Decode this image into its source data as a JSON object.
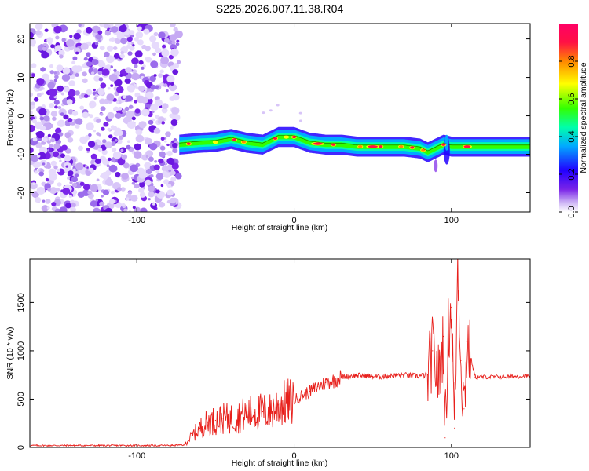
{
  "title": "S225.2026.007.11.38.R04",
  "chart_data": [
    {
      "type": "heatmap",
      "xlabel": "Height of straight line (km)",
      "ylabel": "Frequency (Hz)",
      "xlim": [
        -168,
        150
      ],
      "ylim": [
        -25,
        24
      ],
      "xticks": [
        -100,
        0,
        100
      ],
      "yticks": [
        -20,
        -10,
        0,
        10,
        20
      ],
      "colorbar": {
        "label": "Normalized spectral amplitude",
        "range": [
          0.0,
          1.0
        ],
        "ticks": [
          "0.0",
          "0.2",
          "0.4",
          "0.6",
          "0.8"
        ],
        "colors": [
          "#ffffff",
          "#cdb5f5",
          "#7a24e8",
          "#2200ff",
          "#00aaff",
          "#00ffaa",
          "#33ff00",
          "#ffff00",
          "#ff8800",
          "#ff1144",
          "#ff0066"
        ]
      },
      "noise_region_x": [
        -168,
        -73
      ],
      "ridge": {
        "x": [
          -73,
          -60,
          -50,
          -40,
          -30,
          -20,
          -10,
          0,
          10,
          20,
          30,
          40,
          50,
          60,
          70,
          80,
          85,
          90,
          95,
          100,
          105,
          110,
          120,
          130,
          140,
          150
        ],
        "y": [
          -7.5,
          -7.0,
          -6.8,
          -6.0,
          -7.0,
          -7.5,
          -5.5,
          -5.5,
          -7.0,
          -7.5,
          -7.5,
          -8.0,
          -8.0,
          -8.0,
          -8.0,
          -8.5,
          -9.5,
          -8.5,
          -7.5,
          -8.0,
          -8.0,
          -8.0,
          -8.0,
          -8.0,
          -8.0,
          -8.0
        ]
      }
    },
    {
      "type": "line",
      "xlabel": "Height of straight line (km)",
      "ylabel": "SNR (10 * v/v)",
      "xlim": [
        -168,
        150
      ],
      "ylim": [
        0,
        1950
      ],
      "xticks": [
        -100,
        0,
        100
      ],
      "yticks": [
        0,
        500,
        1000,
        1500
      ],
      "color": "#e8201c",
      "x": [
        -168,
        -140,
        -110,
        -80,
        -70,
        -65,
        -60,
        -55,
        -50,
        -45,
        -40,
        -35,
        -30,
        -25,
        -20,
        -15,
        -10,
        -5,
        0,
        5,
        10,
        15,
        20,
        25,
        30,
        35,
        40,
        45,
        50,
        55,
        60,
        65,
        70,
        75,
        80,
        85,
        88,
        92,
        95,
        96,
        98,
        100,
        102,
        104,
        106,
        108,
        110,
        115,
        120,
        130,
        140,
        150
      ],
      "y": [
        20,
        20,
        20,
        20,
        25,
        120,
        200,
        260,
        280,
        300,
        300,
        320,
        350,
        360,
        370,
        370,
        440,
        460,
        490,
        540,
        580,
        630,
        670,
        690,
        730,
        740,
        745,
        745,
        735,
        730,
        740,
        745,
        750,
        740,
        740,
        750,
        1000,
        700,
        1150,
        100,
        1200,
        1450,
        200,
        1950,
        900,
        400,
        1100,
        730,
        730,
        730,
        735,
        740
      ]
    }
  ]
}
